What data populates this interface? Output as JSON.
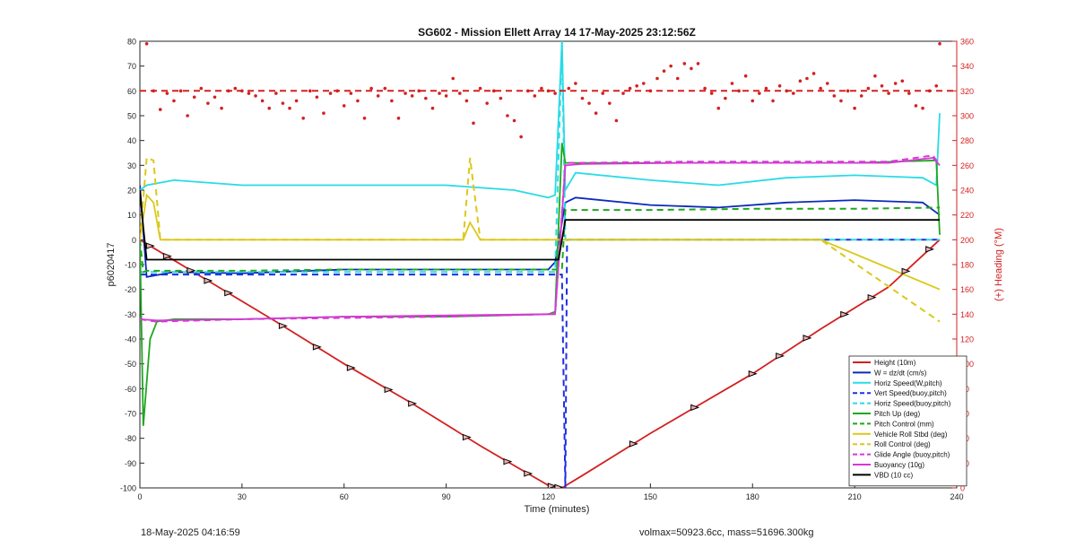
{
  "chart_data": {
    "type": "line",
    "title": "SG602 - Mission Ellett Array 14 17-May-2025 23:12:56Z",
    "xlabel": "Time (minutes)",
    "ylabel": "p6020417",
    "y2label": "(+) Heading (°M)",
    "xlim": [
      0,
      240
    ],
    "ylim": [
      -100,
      80
    ],
    "y2lim": [
      0,
      360
    ],
    "xticks": [
      "0",
      "30",
      "60",
      "90",
      "120",
      "150",
      "180",
      "210",
      "240"
    ],
    "yticks": [
      "80",
      "70",
      "60",
      "50",
      "40",
      "30",
      "20",
      "10",
      "0",
      "-10",
      "-20",
      "-30",
      "-40",
      "-50",
      "-60",
      "-70",
      "-80",
      "-90",
      "-100"
    ],
    "y2ticks": [
      "360",
      "340",
      "320",
      "300",
      "280",
      "260",
      "240",
      "220",
      "200",
      "180",
      "160",
      "140",
      "120",
      "100",
      "80",
      "60",
      "40",
      "20",
      "0"
    ],
    "legend_position": "bottom-right",
    "grid": false,
    "series": [
      {
        "name": "Height (10m)",
        "color": "#d42020",
        "style": "solid",
        "x": [
          0,
          20,
          40,
          60,
          80,
          100,
          110,
          120,
          124,
          130,
          150,
          160,
          180,
          200,
          220,
          235
        ],
        "y": [
          0,
          -16.5,
          -33,
          -50,
          -66,
          -83,
          -91,
          -99,
          -100,
          -95,
          -78,
          -70,
          -54,
          -36,
          -19,
          0
        ]
      },
      {
        "name": "W = dz/dt (cm/s)",
        "color": "#0b2ab8",
        "style": "solid",
        "x": [
          0,
          2,
          10,
          30,
          60,
          90,
          110,
          120,
          122,
          125,
          128,
          150,
          170,
          190,
          210,
          230,
          235
        ],
        "y": [
          22,
          -15,
          -13,
          -13.5,
          -12,
          -12,
          -12,
          -12,
          -9,
          15,
          17,
          14,
          13,
          15,
          16,
          15,
          10
        ]
      },
      {
        "name": "Horiz Speed(W,pitch)",
        "color": "#28dbe6",
        "style": "solid",
        "x": [
          0,
          2,
          10,
          30,
          60,
          90,
          110,
          120,
          122,
          124,
          125,
          128,
          150,
          170,
          190,
          210,
          230,
          234,
          235
        ],
        "y": [
          20,
          22,
          24,
          22,
          22,
          22,
          20,
          17,
          18,
          80,
          20,
          27,
          24,
          22,
          25,
          26,
          25,
          22,
          51
        ]
      },
      {
        "name": "Vert Speed(buoy,pitch)",
        "color": "#1e2ee0",
        "style": "dashed",
        "x": [
          0,
          122,
          124,
          125,
          125.5,
          126,
          140,
          180,
          235
        ],
        "y": [
          -14,
          -14,
          -14,
          -100,
          0,
          0,
          0,
          0,
          0
        ]
      },
      {
        "name": "Horiz Speed(buoy,pitch)",
        "color": "#28dbe6",
        "style": "dashed",
        "x": [
          0,
          122,
          124,
          125,
          126,
          150,
          235
        ],
        "y": [
          -13,
          -13,
          80,
          0,
          0,
          0,
          0
        ]
      },
      {
        "name": "Pitch Up (deg)",
        "color": "#1ea81e",
        "style": "solid",
        "x": [
          0,
          1,
          3,
          5,
          10,
          30,
          60,
          90,
          120,
          122,
          124,
          125,
          128,
          150,
          180,
          210,
          234,
          235
        ],
        "y": [
          0,
          -75,
          -40,
          -33,
          -32,
          -32,
          -31,
          -31,
          -30,
          -29,
          39,
          31,
          31,
          31,
          31,
          31,
          32,
          2
        ]
      },
      {
        "name": "Pitch Control (mm)",
        "color": "#1ea81e",
        "style": "dashed",
        "x": [
          0,
          1,
          2,
          30,
          60,
          90,
          120,
          124,
          125,
          150,
          180,
          210,
          235
        ],
        "y": [
          0,
          -13,
          -12.5,
          -12.5,
          -12,
          -12,
          -12,
          -12,
          12,
          12,
          12.5,
          12.5,
          13
        ]
      },
      {
        "name": "Vehicle Roll Stbd (deg)",
        "color": "#dcc81a",
        "style": "solid",
        "x": [
          0,
          2,
          4,
          6,
          10,
          20,
          40,
          60,
          80,
          95,
          97,
          100,
          110,
          120,
          122,
          125,
          130,
          150,
          170,
          200,
          235
        ],
        "y": [
          0,
          18,
          15,
          0,
          0,
          0,
          0,
          0,
          0,
          0,
          7,
          0,
          0,
          0,
          0,
          0,
          0,
          0,
          0,
          0,
          -20
        ]
      },
      {
        "name": "Roll Control (deg)",
        "color": "#dcc81a",
        "style": "dashed",
        "x": [
          0,
          2,
          4,
          6,
          10,
          40,
          80,
          95,
          97,
          100,
          120,
          125,
          130,
          170,
          200,
          235
        ],
        "y": [
          0,
          33,
          32,
          0,
          0,
          0,
          0,
          0,
          33,
          0,
          0,
          0,
          0,
          0,
          0,
          -33
        ]
      },
      {
        "name": "Glide Angle (buoy,pitch)",
        "color": "#d639d6",
        "style": "dashed",
        "x": [
          0,
          5,
          30,
          60,
          90,
          120,
          122,
          125,
          130,
          160,
          190,
          220,
          233,
          235
        ],
        "y": [
          -32,
          -33,
          -32,
          -31.5,
          -31,
          -30,
          -30,
          31,
          31,
          31.5,
          31.5,
          31.5,
          34,
          30
        ]
      },
      {
        "name": "Buoyancy (10g)",
        "color": "#d639d6",
        "style": "solid",
        "x": [
          0,
          5,
          30,
          60,
          90,
          120,
          122,
          125,
          130,
          160,
          190,
          220,
          233,
          235
        ],
        "y": [
          -32,
          -32.5,
          -32,
          -31,
          -30.5,
          -30,
          -30,
          30,
          30.5,
          31,
          31,
          31,
          33,
          30
        ]
      },
      {
        "name": "VBD (10 cc)",
        "color": "#000000",
        "style": "solid",
        "x": [
          0,
          1,
          2,
          3,
          120,
          122,
          123,
          125,
          126,
          235
        ],
        "y": [
          20,
          5,
          -8,
          -8,
          -8,
          -8,
          -8,
          8,
          8,
          8
        ]
      },
      {
        "name": "",
        "color": "#d42020",
        "style": "dashed",
        "axis": "right",
        "x": [
          0,
          240
        ],
        "y": [
          320,
          320
        ]
      }
    ],
    "heading_points": {
      "axis": "right",
      "color": "#d42020",
      "x": [
        2,
        4,
        6,
        8,
        10,
        12,
        14,
        16,
        18,
        20,
        22,
        24,
        26,
        28,
        30,
        32,
        34,
        36,
        38,
        40,
        42,
        44,
        46,
        48,
        50,
        52,
        54,
        56,
        58,
        60,
        62,
        64,
        66,
        68,
        70,
        72,
        74,
        76,
        78,
        80,
        82,
        84,
        86,
        88,
        90,
        92,
        94,
        96,
        98,
        100,
        102,
        104,
        106,
        108,
        110,
        112,
        114,
        116,
        118,
        120,
        122,
        126,
        128,
        130,
        132,
        134,
        136,
        138,
        140,
        142,
        144,
        146,
        148,
        150,
        152,
        154,
        156,
        158,
        160,
        162,
        164,
        166,
        168,
        170,
        172,
        174,
        176,
        178,
        180,
        182,
        184,
        186,
        188,
        190,
        192,
        194,
        196,
        198,
        200,
        202,
        204,
        206,
        208,
        210,
        212,
        214,
        216,
        218,
        220,
        222,
        224,
        226,
        228,
        230,
        232,
        234,
        235
      ],
      "y": [
        358,
        320,
        305,
        318,
        312,
        320,
        300,
        315,
        322,
        310,
        315,
        306,
        320,
        322,
        320,
        318,
        316,
        312,
        306,
        318,
        310,
        306,
        312,
        298,
        320,
        315,
        302,
        318,
        320,
        308,
        318,
        312,
        298,
        322,
        316,
        322,
        312,
        298,
        318,
        316,
        320,
        314,
        306,
        318,
        316,
        330,
        318,
        312,
        294,
        322,
        310,
        320,
        314,
        300,
        296,
        283,
        320,
        316,
        322,
        320,
        318,
        322,
        326,
        314,
        310,
        302,
        318,
        310,
        296,
        318,
        322,
        324,
        326,
        320,
        330,
        336,
        340,
        330,
        342,
        338,
        342,
        322,
        318,
        306,
        314,
        326,
        320,
        332,
        312,
        318,
        322,
        312,
        324,
        320,
        318,
        328,
        330,
        334,
        322,
        326,
        316,
        312,
        320,
        306,
        316,
        322,
        332,
        324,
        318,
        326,
        328,
        318,
        308,
        306,
        320,
        324,
        358
      ]
    },
    "annotations": {
      "footer_left": "18-May-2025 04:16:59",
      "footer_right": "volmax=50923.6cc, mass=51696.300kg"
    }
  }
}
